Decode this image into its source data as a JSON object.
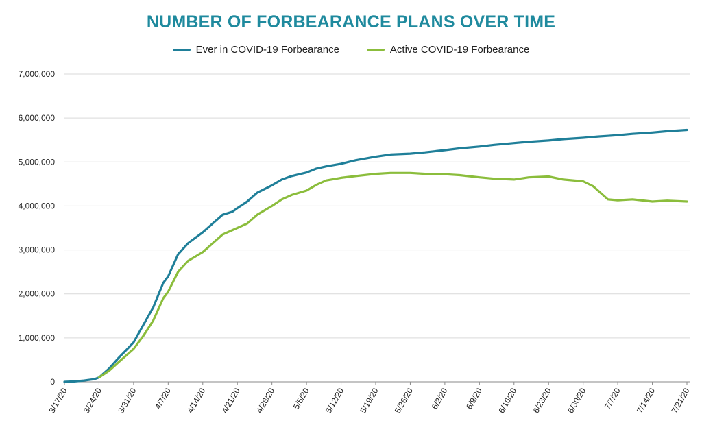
{
  "chart_data": {
    "type": "line",
    "title": "NUMBER OF FORBEARANCE PLANS OVER TIME",
    "xlabel": "",
    "ylabel": "",
    "ylim": [
      0,
      7000000
    ],
    "grid": true,
    "legend": "top-center",
    "y_ticks": [
      "0",
      "1,000,000",
      "2,000,000",
      "3,000,000",
      "4,000,000",
      "5,000,000",
      "6,000,000",
      "7,000,000"
    ],
    "x_ticks": [
      "3/17/20",
      "3/24/20",
      "3/31/20",
      "4/7/20",
      "4/14/20",
      "4/21/20",
      "4/28/20",
      "5/5/20",
      "5/12/20",
      "5/19/20",
      "5/26/20",
      "6/2/20",
      "6/9/20",
      "6/16/20",
      "6/23/20",
      "6/30/20",
      "7/7/20",
      "7/14/20",
      "7/21/20"
    ],
    "series": [
      {
        "name": "Ever in COVID-19 Forbearance",
        "color": "#1f7f99",
        "points": [
          [
            "3/17/20",
            0
          ],
          [
            "3/19/20",
            10000
          ],
          [
            "3/21/20",
            30000
          ],
          [
            "3/23/20",
            60000
          ],
          [
            "3/24/20",
            100000
          ],
          [
            "3/26/20",
            300000
          ],
          [
            "3/28/20",
            550000
          ],
          [
            "3/30/20",
            780000
          ],
          [
            "3/31/20",
            900000
          ],
          [
            "4/2/20",
            1300000
          ],
          [
            "4/4/20",
            1700000
          ],
          [
            "4/6/20",
            2250000
          ],
          [
            "4/7/20",
            2400000
          ],
          [
            "4/9/20",
            2900000
          ],
          [
            "4/11/20",
            3150000
          ],
          [
            "4/14/20",
            3400000
          ],
          [
            "4/16/20",
            3600000
          ],
          [
            "4/18/20",
            3800000
          ],
          [
            "4/20/20",
            3870000
          ],
          [
            "4/21/20",
            3950000
          ],
          [
            "4/23/20",
            4100000
          ],
          [
            "4/25/20",
            4300000
          ],
          [
            "4/28/20",
            4470000
          ],
          [
            "4/30/20",
            4600000
          ],
          [
            "5/2/20",
            4680000
          ],
          [
            "5/5/20",
            4760000
          ],
          [
            "5/7/20",
            4850000
          ],
          [
            "5/9/20",
            4900000
          ],
          [
            "5/12/20",
            4960000
          ],
          [
            "5/15/20",
            5040000
          ],
          [
            "5/19/20",
            5120000
          ],
          [
            "5/22/20",
            5170000
          ],
          [
            "5/26/20",
            5190000
          ],
          [
            "5/29/20",
            5220000
          ],
          [
            "6/2/20",
            5270000
          ],
          [
            "6/5/20",
            5310000
          ],
          [
            "6/9/20",
            5350000
          ],
          [
            "6/12/20",
            5390000
          ],
          [
            "6/16/20",
            5430000
          ],
          [
            "6/19/20",
            5460000
          ],
          [
            "6/23/20",
            5490000
          ],
          [
            "6/26/20",
            5520000
          ],
          [
            "6/30/20",
            5550000
          ],
          [
            "7/3/20",
            5580000
          ],
          [
            "7/7/20",
            5610000
          ],
          [
            "7/10/20",
            5640000
          ],
          [
            "7/14/20",
            5670000
          ],
          [
            "7/17/20",
            5700000
          ],
          [
            "7/21/20",
            5730000
          ]
        ]
      },
      {
        "name": "Active COVID-19 Forbearance",
        "color": "#8bbd3c",
        "points": [
          [
            "3/24/20",
            100000
          ],
          [
            "3/26/20",
            250000
          ],
          [
            "3/28/20",
            450000
          ],
          [
            "3/30/20",
            650000
          ],
          [
            "3/31/20",
            750000
          ],
          [
            "4/2/20",
            1050000
          ],
          [
            "4/4/20",
            1400000
          ],
          [
            "4/6/20",
            1900000
          ],
          [
            "4/7/20",
            2050000
          ],
          [
            "4/9/20",
            2500000
          ],
          [
            "4/11/20",
            2750000
          ],
          [
            "4/14/20",
            2950000
          ],
          [
            "4/16/20",
            3150000
          ],
          [
            "4/18/20",
            3350000
          ],
          [
            "4/21/20",
            3500000
          ],
          [
            "4/23/20",
            3600000
          ],
          [
            "4/25/20",
            3800000
          ],
          [
            "4/28/20",
            4000000
          ],
          [
            "4/30/20",
            4150000
          ],
          [
            "5/2/20",
            4250000
          ],
          [
            "5/5/20",
            4350000
          ],
          [
            "5/7/20",
            4480000
          ],
          [
            "5/9/20",
            4580000
          ],
          [
            "5/12/20",
            4640000
          ],
          [
            "5/15/20",
            4680000
          ],
          [
            "5/19/20",
            4730000
          ],
          [
            "5/22/20",
            4750000
          ],
          [
            "5/26/20",
            4750000
          ],
          [
            "5/29/20",
            4730000
          ],
          [
            "6/2/20",
            4720000
          ],
          [
            "6/5/20",
            4700000
          ],
          [
            "6/9/20",
            4650000
          ],
          [
            "6/12/20",
            4620000
          ],
          [
            "6/16/20",
            4600000
          ],
          [
            "6/19/20",
            4650000
          ],
          [
            "6/23/20",
            4670000
          ],
          [
            "6/26/20",
            4600000
          ],
          [
            "6/30/20",
            4560000
          ],
          [
            "7/2/20",
            4450000
          ],
          [
            "7/5/20",
            4150000
          ],
          [
            "7/7/20",
            4130000
          ],
          [
            "7/10/20",
            4150000
          ],
          [
            "7/14/20",
            4100000
          ],
          [
            "7/17/20",
            4120000
          ],
          [
            "7/21/20",
            4100000
          ]
        ]
      }
    ]
  }
}
